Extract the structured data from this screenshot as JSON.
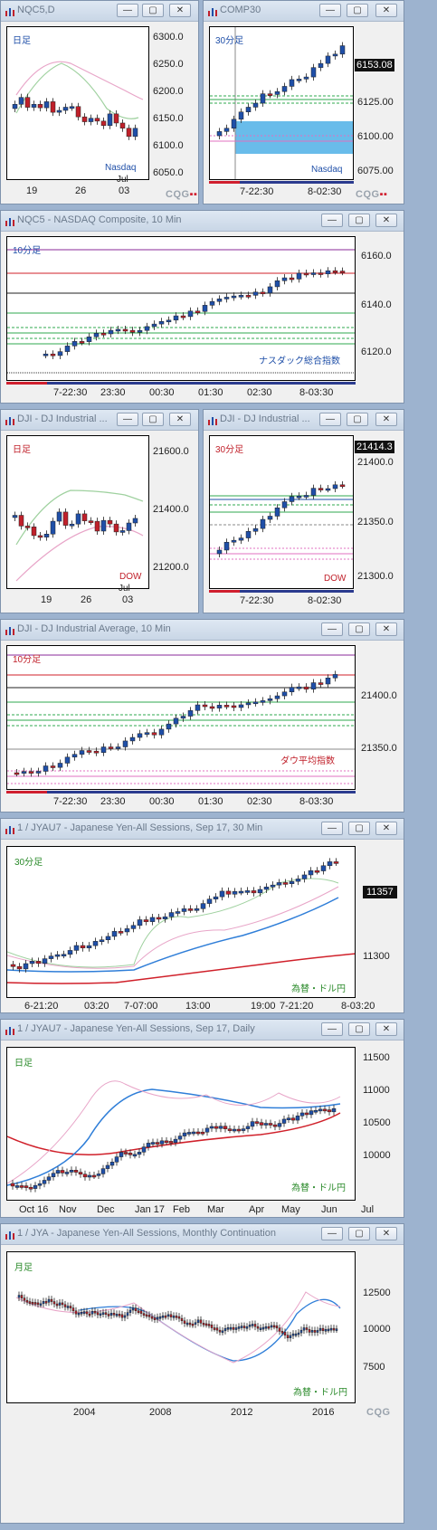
{
  "windows": [
    {
      "id": "w1",
      "title": "NQC5,D",
      "frame": "日足",
      "caption": "Nasdaq",
      "ylabels": [
        "6300.0",
        "6250.0",
        "6200.0",
        "6150.0",
        "6100.0",
        "6050.0"
      ],
      "xlabels": [
        "19",
        "26",
        "03"
      ],
      "xsub": "Jul"
    },
    {
      "id": "w2",
      "title": "COMP30",
      "frame": "30分足",
      "caption": "Nasdaq",
      "ylabels": [
        "6125.00",
        "6100.00",
        "6075.00"
      ],
      "price": "6153.08",
      "xlabels": [
        "7-22:30",
        "8-02:30"
      ]
    },
    {
      "id": "w3",
      "title": "NQC5 - NASDAQ Composite, 10 Min",
      "frame": "10分足",
      "caption": "ナスダック総合指数",
      "ylabels": [
        "6160.0",
        "6140.0",
        "6120.0"
      ],
      "xlabels": [
        "7-22:30",
        "23:30",
        "00:30",
        "01:30",
        "02:30",
        "8-03:30"
      ]
    },
    {
      "id": "w4",
      "title": "DJI - DJ Industrial ...",
      "frame": "日足",
      "caption": "DOW",
      "ylabels": [
        "21600.0",
        "21400.0",
        "21200.0"
      ],
      "xlabels": [
        "19",
        "26",
        "03"
      ],
      "xsub": "Jul"
    },
    {
      "id": "w5",
      "title": "DJI - DJ Industrial ...",
      "frame": "30分足",
      "caption": "DOW",
      "ylabels": [
        "21400.0",
        "21350.0",
        "21300.0"
      ],
      "price": "21414.3",
      "xlabels": [
        "7-22:30",
        "8-02:30"
      ]
    },
    {
      "id": "w6",
      "title": "DJI - DJ Industrial Average, 10 Min",
      "frame": "10分足",
      "caption": "ダウ平均指数",
      "ylabels": [
        "21400.0",
        "21350.0"
      ],
      "xlabels": [
        "7-22:30",
        "23:30",
        "00:30",
        "01:30",
        "02:30",
        "8-03:30"
      ]
    },
    {
      "id": "w7",
      "title": "1 / JYAU7 - Japanese Yen-All Sessions, Sep 17, 30 Min",
      "frame": "30分足",
      "caption": "為替・ドル円",
      "ylabels": [
        "11300"
      ],
      "price": "11357",
      "xlabels": [
        "6-21:20",
        "03:20",
        "7-07:00",
        "13:00",
        "19:00",
        "7-21:20",
        "8-03:20"
      ]
    },
    {
      "id": "w8",
      "title": "1 / JYAU7 - Japanese Yen-All Sessions, Sep 17, Daily",
      "frame": "日足",
      "caption": "為替・ドル円",
      "ylabels": [
        "11500",
        "11000",
        "10500",
        "10000"
      ],
      "xlabels": [
        "Oct 16",
        "Nov",
        "Dec",
        "Jan 17",
        "Feb",
        "Mar",
        "Apr",
        "May",
        "Jun",
        "Jul"
      ]
    },
    {
      "id": "w9",
      "title": "1 / JYA - Japanese Yen-All Sessions, Monthly Continuation",
      "frame": "月足",
      "caption": "為替・ドル円",
      "ylabels": [
        "12500",
        "10000",
        "7500"
      ],
      "xlabels": [
        "2004",
        "2008",
        "2012",
        "2016"
      ]
    }
  ],
  "buttons": {
    "minimize": "—",
    "restore": "▢",
    "close": "✕"
  },
  "logo": "CQG",
  "colors": {
    "up": "#1f4fa8",
    "down": "#c0202a",
    "accent": "#d01f2f"
  }
}
